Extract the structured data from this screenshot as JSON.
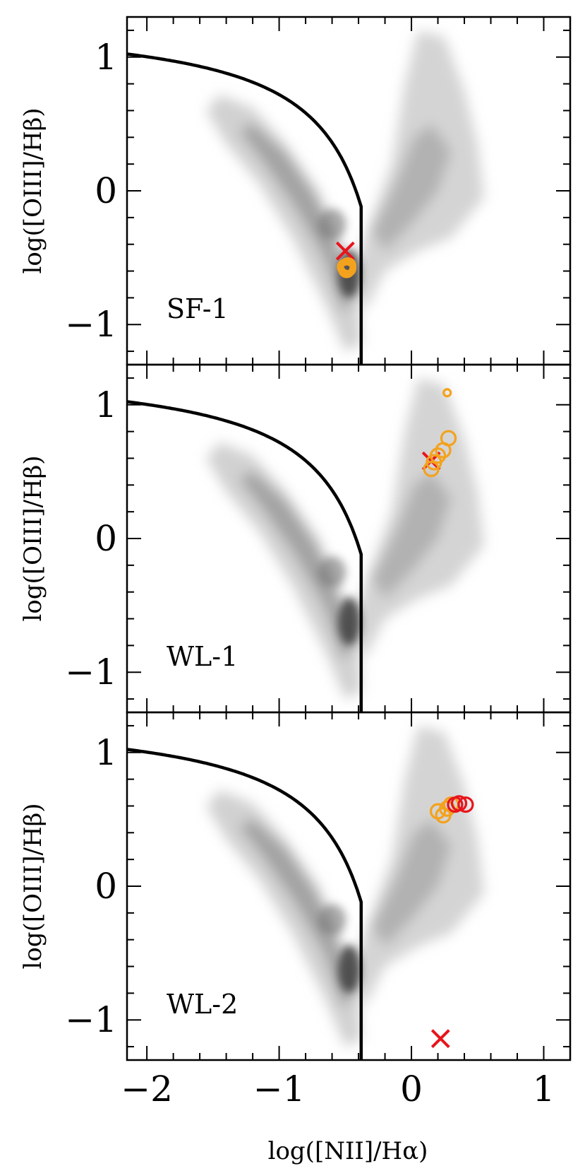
{
  "chart_data": [
    {
      "type": "scatter",
      "label": "SF-1",
      "xlabel": "",
      "ylabel": "log([OIII]/Hβ)",
      "xlim": [
        -2.15,
        1.2
      ],
      "ylim": [
        -1.3,
        1.3
      ],
      "xticks": [
        -2,
        -1,
        0,
        1
      ],
      "yticks": [
        -1,
        0,
        1
      ],
      "ytick_labels": [
        "−1",
        "0",
        "1"
      ],
      "series": [
        {
          "marker": "x",
          "color": "#e8141c",
          "points": [
            [
              -0.5,
              -0.45
            ]
          ]
        },
        {
          "marker": "open-circle",
          "color": "#f3a21d",
          "points": [
            [
              -0.49,
              -0.57
            ],
            [
              -0.48,
              -0.56
            ],
            [
              -0.49,
              -0.58
            ],
            [
              -0.5,
              -0.57
            ],
            [
              -0.48,
              -0.58
            ],
            [
              -0.49,
              -0.59
            ]
          ]
        }
      ]
    },
    {
      "type": "scatter",
      "label": "WL-1",
      "xlabel": "",
      "ylabel": "log([OIII]/Hβ)",
      "xlim": [
        -2.15,
        1.2
      ],
      "ylim": [
        -1.3,
        1.3
      ],
      "xticks": [
        -2,
        -1,
        0,
        1
      ],
      "yticks": [
        -1,
        0,
        1
      ],
      "ytick_labels": [
        "−1",
        "0",
        "1"
      ],
      "series": [
        {
          "marker": "x",
          "color": "#e8141c",
          "points": [
            [
              0.15,
              0.58
            ]
          ]
        },
        {
          "marker": "open-circle",
          "color": "#f3a21d",
          "points": [
            [
              0.27,
              1.09
            ],
            [
              0.28,
              0.75
            ],
            [
              0.24,
              0.66
            ],
            [
              0.2,
              0.62
            ],
            [
              0.17,
              0.57
            ],
            [
              0.15,
              0.52
            ]
          ]
        }
      ]
    },
    {
      "type": "scatter",
      "label": "WL-2",
      "xlabel": "log([NII]/Hα)",
      "ylabel": "log([OIII]/Hβ)",
      "xlim": [
        -2.15,
        1.2
      ],
      "ylim": [
        -1.3,
        1.3
      ],
      "xticks": [
        -2,
        -1,
        0,
        1
      ],
      "yticks": [
        -1,
        0,
        1
      ],
      "xtick_labels": [
        "−2",
        "−1",
        "0",
        "1"
      ],
      "ytick_labels": [
        "−1",
        "0",
        "1"
      ],
      "series": [
        {
          "marker": "x",
          "color": "#e8141c",
          "points": [
            [
              0.22,
              -1.14
            ]
          ]
        },
        {
          "marker": "open-circle",
          "color": "#f3a21d",
          "points": [
            [
              0.2,
              0.56
            ],
            [
              0.24,
              0.53
            ],
            [
              0.27,
              0.58
            ],
            [
              0.3,
              0.61
            ]
          ]
        },
        {
          "marker": "open-circle",
          "color": "#e8141c",
          "points": [
            [
              0.33,
              0.61
            ],
            [
              0.36,
              0.62
            ],
            [
              0.41,
              0.61
            ]
          ]
        }
      ]
    }
  ]
}
